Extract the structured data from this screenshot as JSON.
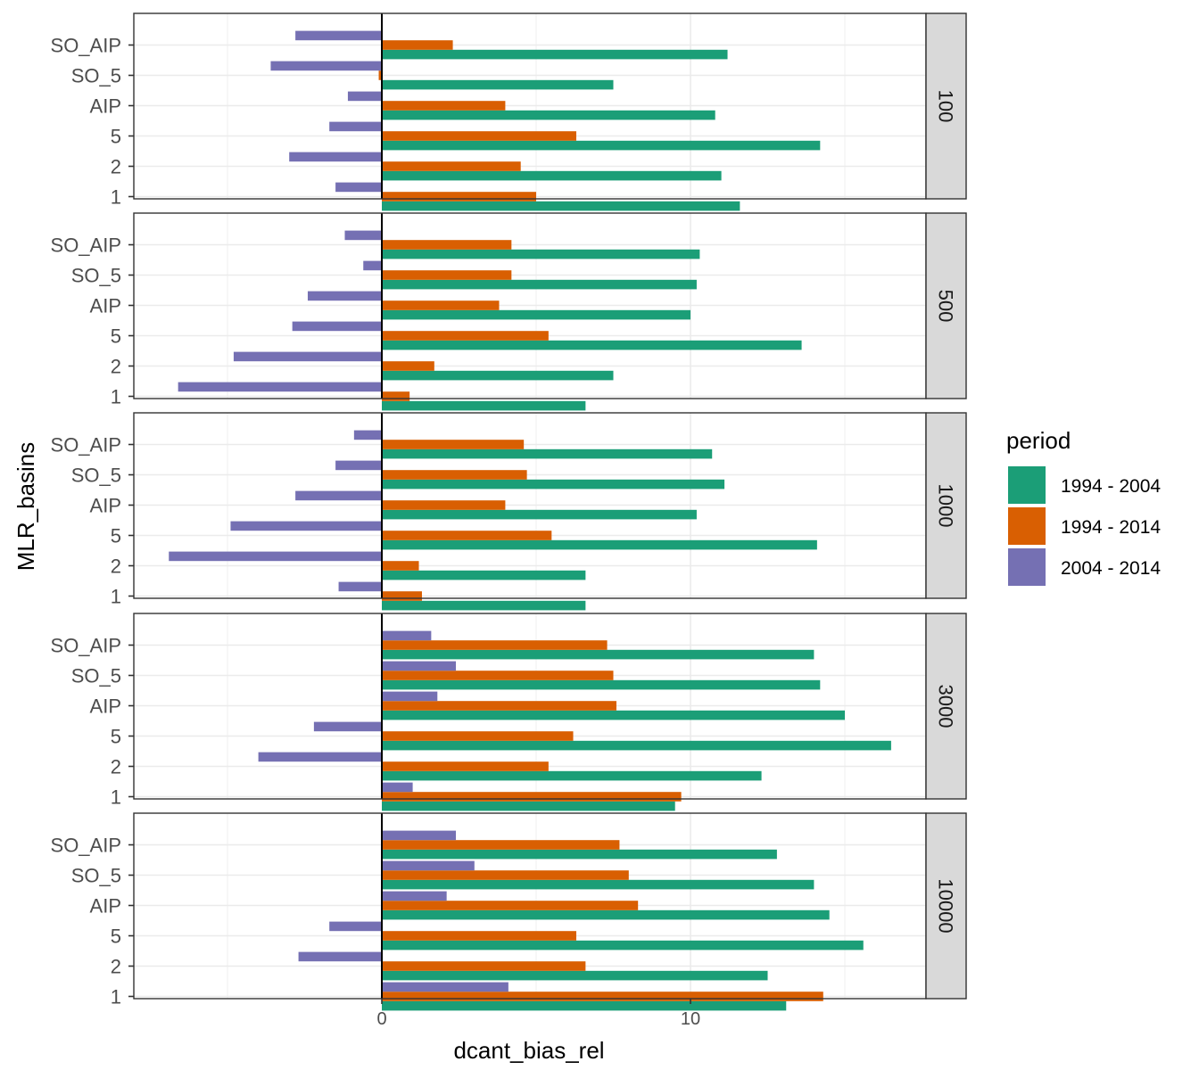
{
  "chart_data": {
    "type": "bar",
    "orientation": "horizontal",
    "faceting": "rows",
    "xlabel": "dcant_bias_rel",
    "ylabel": "MLR_basins",
    "xlim": [
      -8,
      17.8
    ],
    "x_ticks": [
      0,
      10
    ],
    "x_tick_labels": [
      "0",
      "10"
    ],
    "grid": true,
    "categories": [
      "SO_AIP",
      "SO_5",
      "AIP",
      "5",
      "2",
      "1"
    ],
    "legend": {
      "title": "period",
      "position": "right",
      "items": [
        {
          "label": "1994 - 2004",
          "color": "#1b9e77"
        },
        {
          "label": "1994 - 2014",
          "color": "#d95f02"
        },
        {
          "label": "2004 - 2014",
          "color": "#7570b3"
        }
      ]
    },
    "series_order": [
      "1994 - 2004",
      "1994 - 2014",
      "2004 - 2014"
    ],
    "panels": [
      {
        "strip": "100",
        "series": [
          {
            "name": "1994 - 2004",
            "values": [
              11.2,
              7.5,
              10.8,
              14.2,
              11.0,
              11.6
            ]
          },
          {
            "name": "1994 - 2014",
            "values": [
              2.3,
              -0.1,
              4.0,
              6.3,
              4.5,
              5.0
            ]
          },
          {
            "name": "2004 - 2014",
            "values": [
              -2.8,
              -3.6,
              -1.1,
              -1.7,
              -3.0,
              -1.5
            ]
          }
        ]
      },
      {
        "strip": "500",
        "series": [
          {
            "name": "1994 - 2004",
            "values": [
              10.3,
              10.2,
              10.0,
              13.6,
              7.5,
              6.6
            ]
          },
          {
            "name": "1994 - 2014",
            "values": [
              4.2,
              4.2,
              3.8,
              5.4,
              1.7,
              0.9
            ]
          },
          {
            "name": "2004 - 2014",
            "values": [
              -1.2,
              -0.6,
              -2.4,
              -2.9,
              -4.8,
              -6.6
            ]
          }
        ]
      },
      {
        "strip": "1000",
        "series": [
          {
            "name": "1994 - 2004",
            "values": [
              10.7,
              11.1,
              10.2,
              14.1,
              6.6,
              6.6
            ]
          },
          {
            "name": "1994 - 2014",
            "values": [
              4.6,
              4.7,
              4.0,
              5.5,
              1.2,
              1.3
            ]
          },
          {
            "name": "2004 - 2014",
            "values": [
              -0.9,
              -1.5,
              -2.8,
              -4.9,
              -6.9,
              -1.4
            ]
          }
        ]
      },
      {
        "strip": "3000",
        "series": [
          {
            "name": "1994 - 2004",
            "values": [
              14.0,
              14.2,
              15.0,
              16.5,
              12.3,
              9.5
            ]
          },
          {
            "name": "1994 - 2014",
            "values": [
              7.3,
              7.5,
              7.6,
              6.2,
              5.4,
              9.7
            ]
          },
          {
            "name": "2004 - 2014",
            "values": [
              1.6,
              2.4,
              1.8,
              -2.2,
              -4.0,
              1.0
            ]
          }
        ]
      },
      {
        "strip": "10000",
        "series": [
          {
            "name": "1994 - 2004",
            "values": [
              12.8,
              14.0,
              14.5,
              15.6,
              12.5,
              13.1
            ]
          },
          {
            "name": "1994 - 2014",
            "values": [
              7.7,
              8.0,
              8.3,
              6.3,
              6.6,
              14.3
            ]
          },
          {
            "name": "2004 - 2014",
            "values": [
              2.4,
              3.0,
              2.1,
              -1.7,
              -2.7,
              4.1
            ]
          }
        ]
      }
    ]
  }
}
